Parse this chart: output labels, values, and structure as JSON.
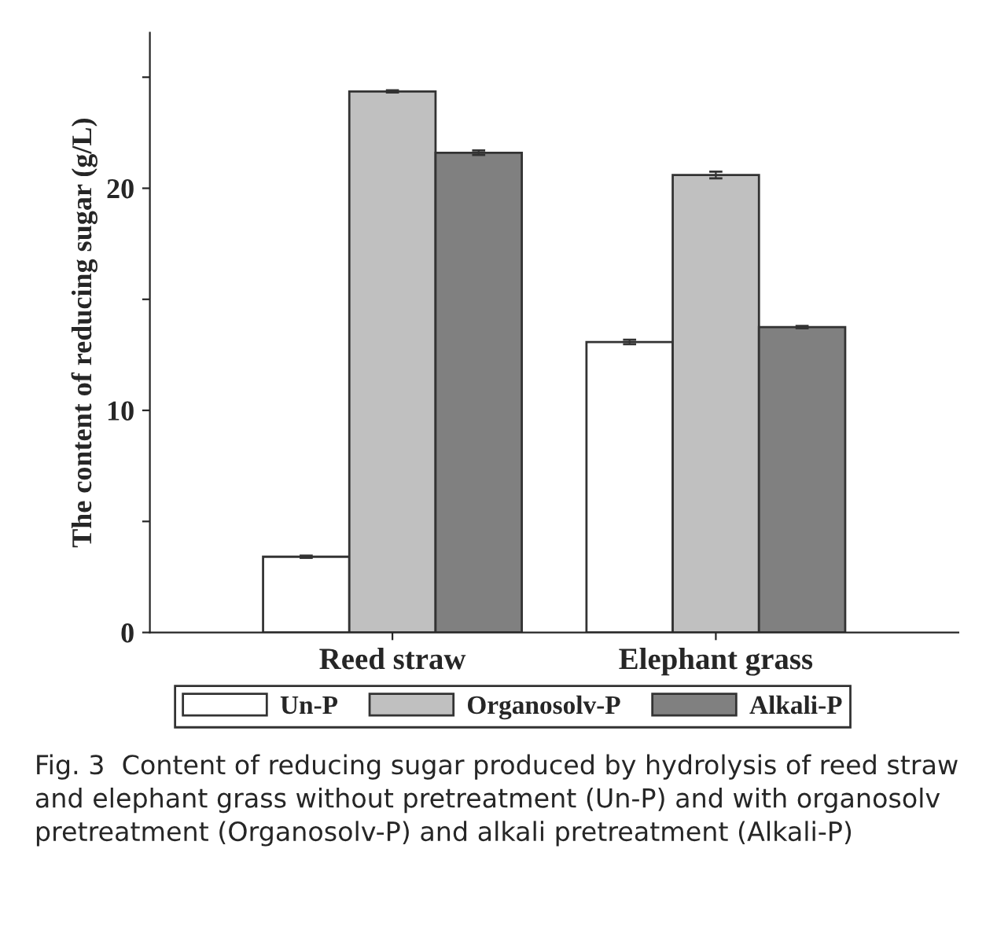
{
  "chart_data": {
    "type": "bar",
    "categories": [
      "Reed straw",
      "Elephant grass"
    ],
    "series": [
      {
        "name": "Un-P",
        "color": "#ffffff",
        "values": [
          3.41,
          13.08
        ],
        "errors": [
          0.05,
          0.1
        ]
      },
      {
        "name": "Organosolv-P",
        "color": "#c0c0c0",
        "values": [
          24.36,
          20.6
        ],
        "errors": [
          0.05,
          0.15
        ]
      },
      {
        "name": "Alkali-P",
        "color": "#808080",
        "values": [
          21.6,
          13.75
        ],
        "errors": [
          0.1,
          0.05
        ]
      }
    ],
    "ylabel": "The content of reducing sugar (g/L)",
    "ylim": [
      0,
      27
    ],
    "yticks": [
      0,
      {
        "value": 5,
        "label": null
      },
      10,
      {
        "value": 15,
        "label": null
      },
      20,
      {
        "value": 25,
        "label": null
      }
    ],
    "legend": "bottom",
    "grid": false,
    "annotations": [
      "Fig. 3  Content of reducing sugar produced by hydrolysis of reed straw and elephant grass without pretreatment (Un-P) and with organosolv pretreatment (Organosolv-P) and alkali pretreatment (Alkali-P)"
    ]
  }
}
